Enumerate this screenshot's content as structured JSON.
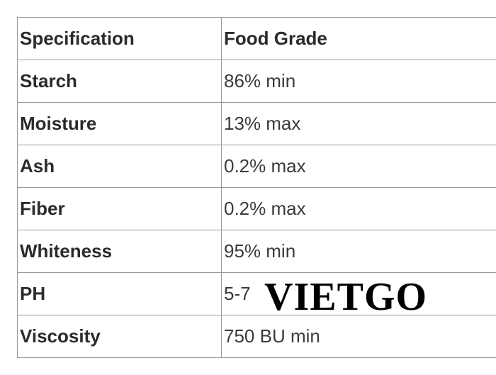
{
  "table": {
    "header": {
      "col1": "Specification",
      "col2": "Food Grade"
    },
    "rows": [
      {
        "spec": "Starch",
        "value": "86% min"
      },
      {
        "spec": "Moisture",
        "value": "13% max"
      },
      {
        "spec": "Ash",
        "value": "0.2% max"
      },
      {
        "spec": "Fiber",
        "value": "0.2% max"
      },
      {
        "spec": "Whiteness",
        "value": "95% min"
      },
      {
        "spec": "PH",
        "value": "5-7"
      },
      {
        "spec": "Viscosity",
        "value": "750 BU min"
      }
    ]
  },
  "watermark": {
    "text": "VIETGO"
  },
  "colors": {
    "border": "#9a9a9a",
    "text": "#333333",
    "watermark": "#000000",
    "background": "#ffffff"
  }
}
